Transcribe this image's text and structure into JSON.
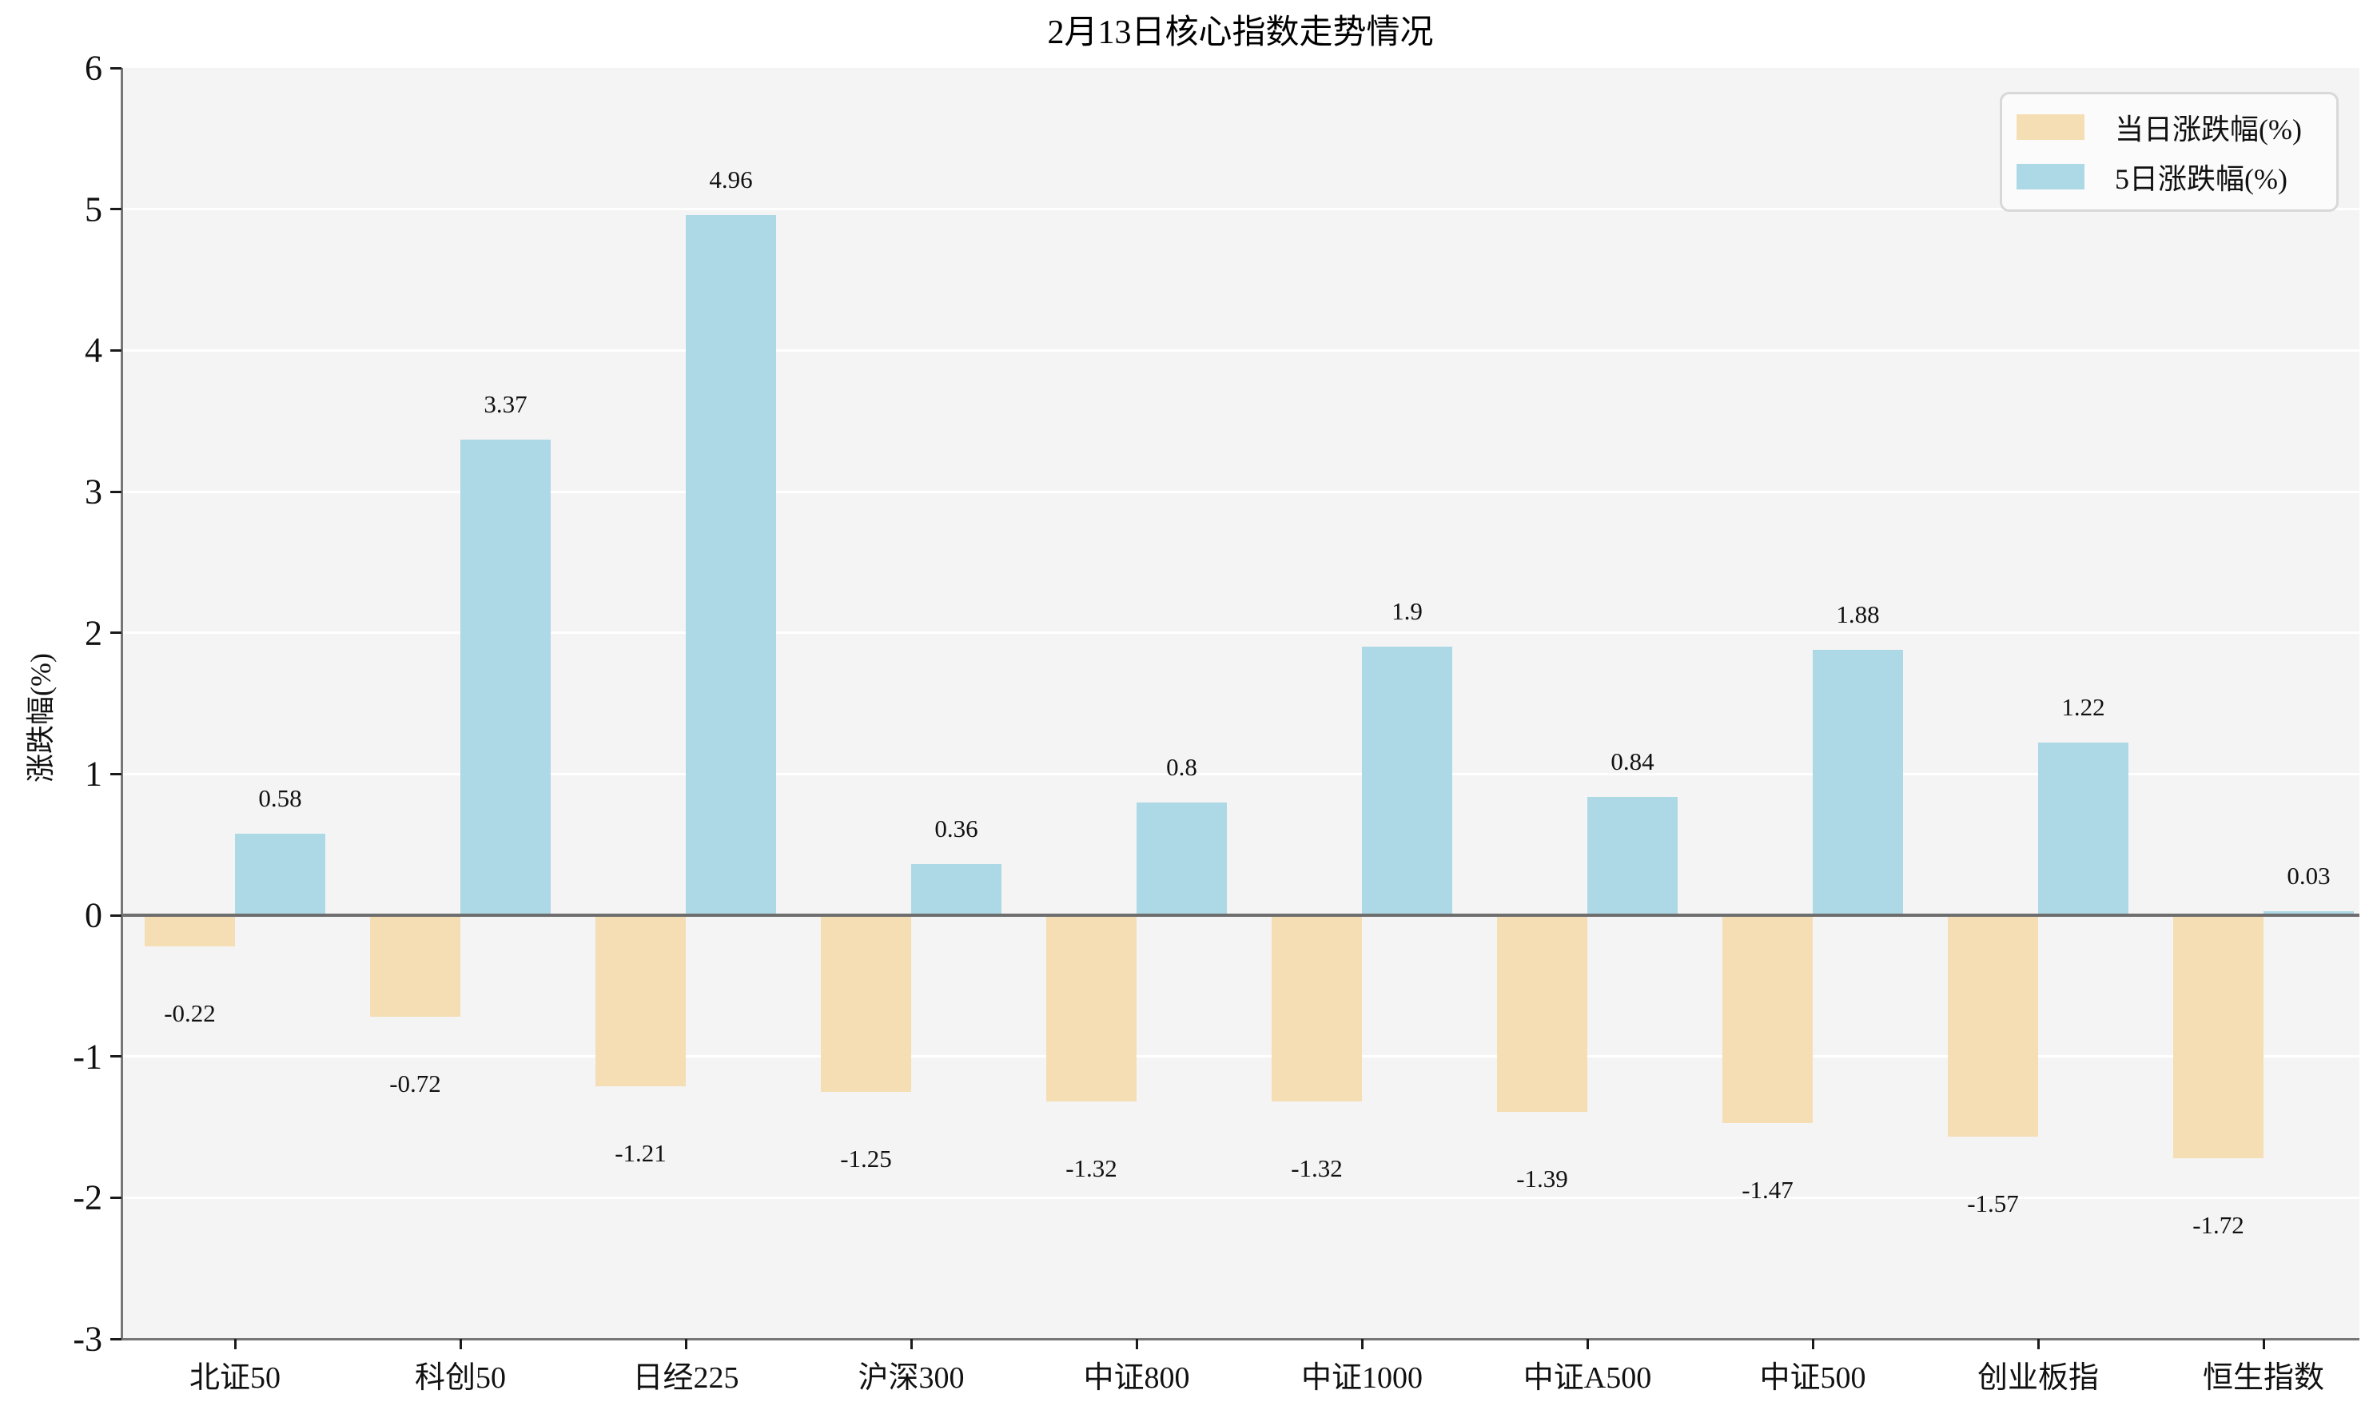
{
  "chart_data": {
    "type": "bar",
    "title": "2月13日核心指数走势情况",
    "ylabel": "涨跌幅(%)",
    "xlabel": "",
    "categories": [
      "北证50",
      "科创50",
      "日经225",
      "沪深300",
      "中证800",
      "中证1000",
      "中证A500",
      "中证500",
      "创业板指",
      "恒生指数"
    ],
    "series": [
      {
        "name": "当日涨跌幅(%)",
        "color": "#f5deb3",
        "values": [
          -0.22,
          -0.72,
          -1.21,
          -1.25,
          -1.32,
          -1.32,
          -1.39,
          -1.47,
          -1.57,
          -1.72
        ]
      },
      {
        "name": "5日涨跌幅(%)",
        "color": "#add8e6",
        "values": [
          0.58,
          3.37,
          4.96,
          0.36,
          0.8,
          1.9,
          0.84,
          1.88,
          1.22,
          0.03
        ]
      }
    ],
    "ylim": [
      -3,
      6
    ],
    "yticks": [
      6,
      5,
      4,
      3,
      2,
      1,
      0,
      -1,
      -2,
      -3
    ],
    "grid": "horizontal-white-on-gray",
    "legend_position": "top-right",
    "bar_value_labels": true
  }
}
